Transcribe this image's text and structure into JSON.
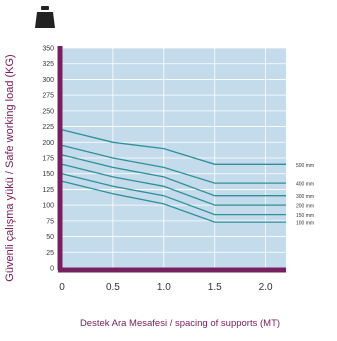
{
  "colors": {
    "plot_background": "#c3dbeb",
    "grid": "#ffffff",
    "axis": "#77205f",
    "label": "#77205f",
    "tick_text": "#333333",
    "series_line": "#2f8f9a",
    "series_label": "#333333",
    "icon": "#222222"
  },
  "icon": "weight-icon",
  "chart_data": {
    "type": "line",
    "title": "",
    "xlabel": "Destek Ara Mesafesi / spacing of supports (MT)",
    "ylabel": "Güvenli çalışma yükü / Safe working load (KG)",
    "xlim": [
      0,
      2.2
    ],
    "ylim": [
      0,
      350
    ],
    "xticks": [
      {
        "value": 0,
        "label": "0"
      },
      {
        "value": 0.5,
        "label": "0.5"
      },
      {
        "value": 1.0,
        "label": "1.0"
      },
      {
        "value": 1.5,
        "label": "1.5"
      },
      {
        "value": 2.0,
        "label": "2.0"
      }
    ],
    "yticks": [
      0,
      25,
      50,
      75,
      100,
      125,
      150,
      175,
      200,
      225,
      250,
      275,
      300,
      325,
      350
    ],
    "grid": true,
    "legend": "right-inline",
    "x": [
      0,
      0.5,
      1.0,
      1.5,
      2.0,
      2.2
    ],
    "series": [
      {
        "name": "500 mm",
        "values": [
          220,
          200,
          190,
          165,
          165,
          165
        ]
      },
      {
        "name": "400 mm",
        "values": [
          195,
          175,
          160,
          135,
          135,
          135
        ]
      },
      {
        "name": "300 mm",
        "values": [
          180,
          160,
          145,
          115,
          115,
          115
        ]
      },
      {
        "name": "200 mm",
        "values": [
          165,
          145,
          130,
          100,
          100,
          100
        ]
      },
      {
        "name": "150 mm",
        "values": [
          150,
          130,
          115,
          85,
          85,
          85
        ]
      },
      {
        "name": "100 mm",
        "values": [
          138,
          118,
          102,
          73,
          73,
          73
        ]
      }
    ]
  }
}
